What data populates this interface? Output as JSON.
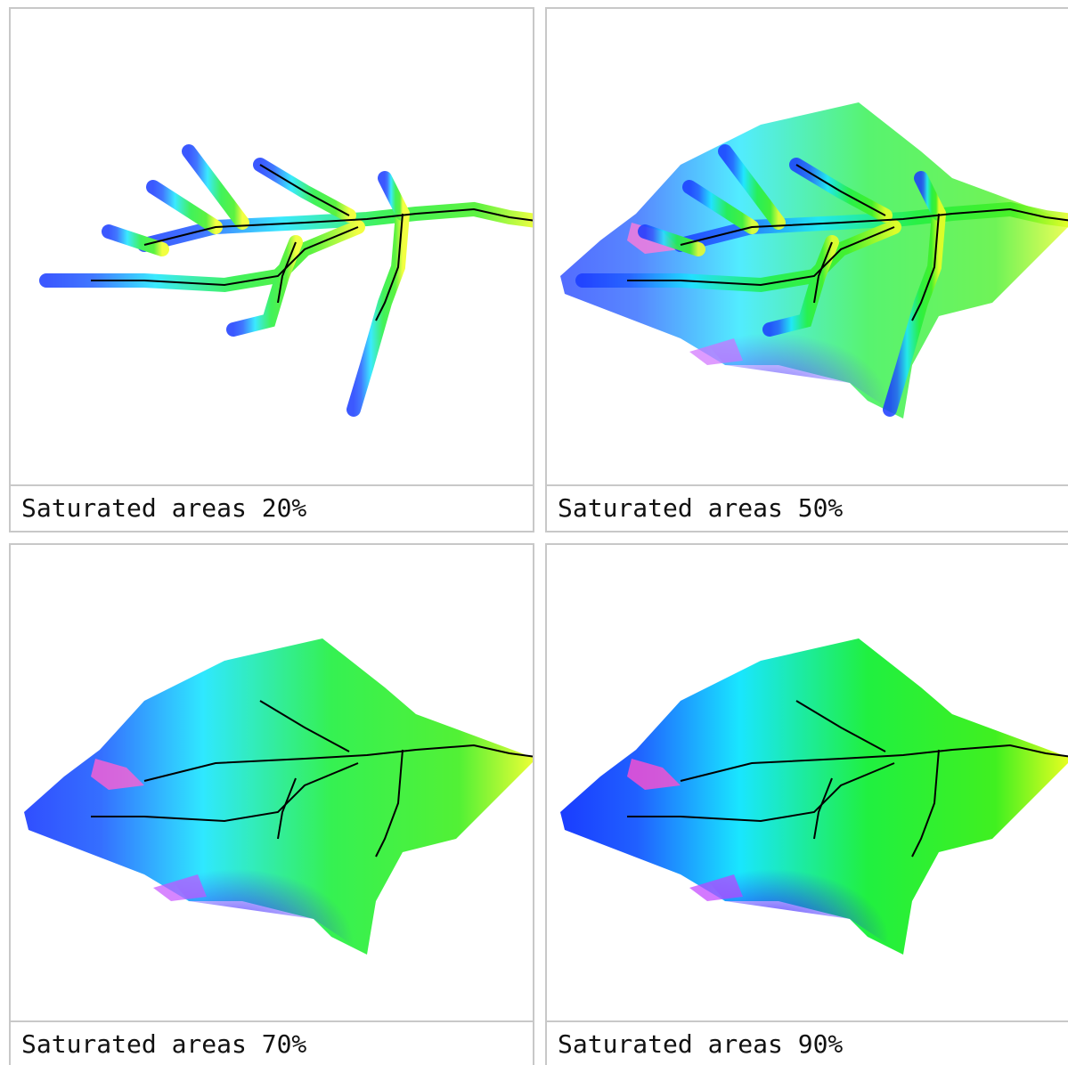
{
  "panels": [
    {
      "caption": "Saturated areas 20%"
    },
    {
      "caption": "Saturated areas 50%"
    },
    {
      "caption": "Saturated areas 70%"
    },
    {
      "caption": "Saturated areas 90%"
    }
  ]
}
